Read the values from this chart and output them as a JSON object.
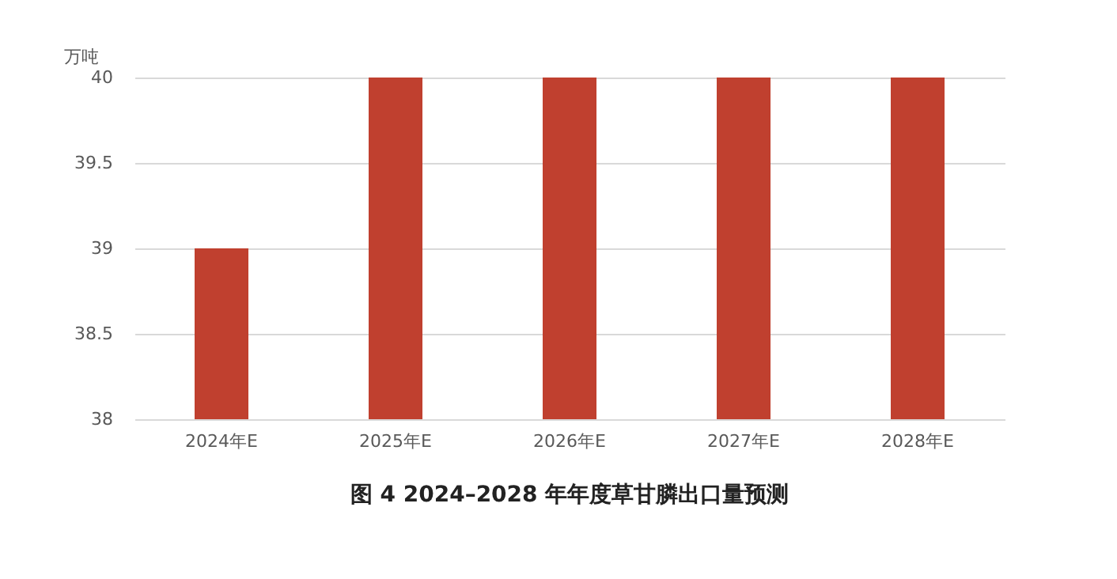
{
  "chart_data": {
    "type": "bar",
    "title": "图 4 2024–2028 年年度草甘膦出口量预测",
    "ylabel": "万吨",
    "categories": [
      "2024年E",
      "2025年E",
      "2026年E",
      "2027年E",
      "2028年E"
    ],
    "values": [
      39,
      40,
      40,
      40,
      40
    ],
    "color": "#c0402f",
    "ylim": [
      38,
      40
    ],
    "yticks": [
      38,
      38.5,
      39,
      39.5,
      40
    ],
    "grid": "y"
  }
}
